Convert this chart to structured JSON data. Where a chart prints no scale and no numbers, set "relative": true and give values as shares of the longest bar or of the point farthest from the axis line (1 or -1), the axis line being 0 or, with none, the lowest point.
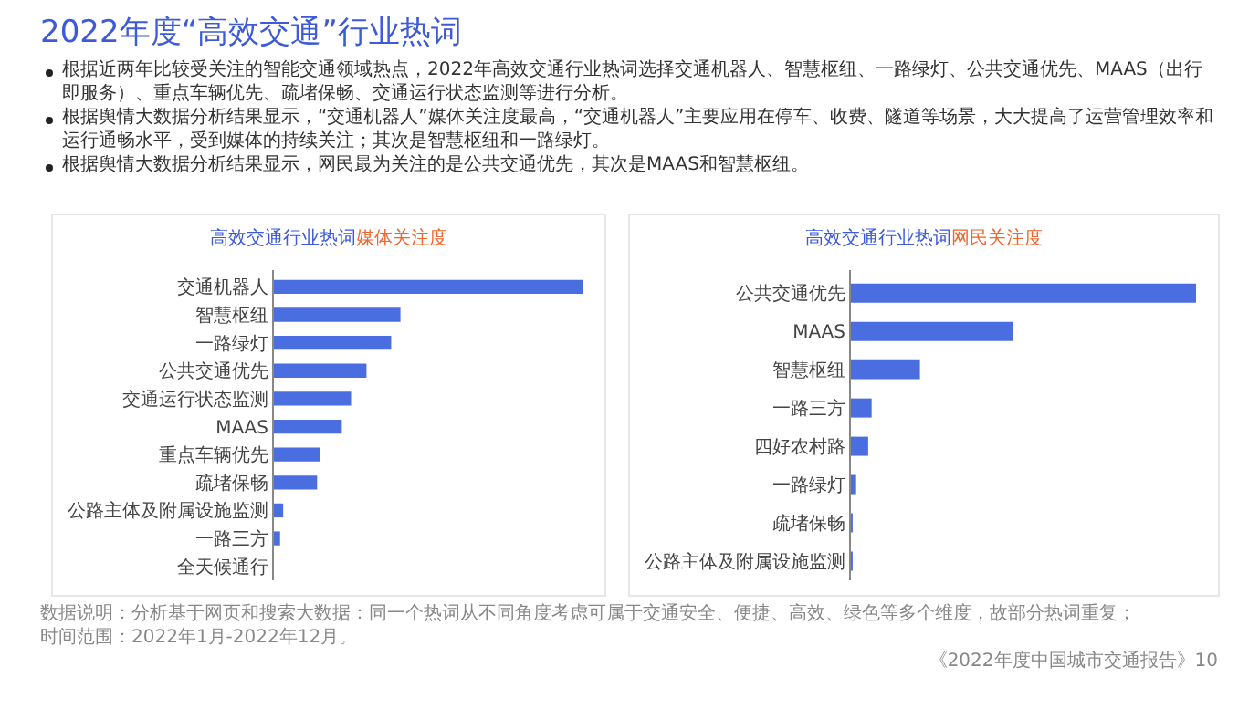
{
  "chart_data": [
    {
      "type": "other",
      "title": "2022年度“高效交通”行业热词",
      "annotations": [
        "根据近两年比较受关注的智能交通领域热点，2022年高效交通行业热词选择交通机器人、智慧枢纽、一路绿灯、公共交通优先、MAAS（出行即服务）、重点车辆优先、疏堵保畅、交通运行状态监测等进行分析。",
        "根据舆情大数据分析结果显示，“交通机器人”媒体关注度最高，“交通机器人”主要应用在停车、收费、隧道等场景，大大提高了运营管理效率和运行通畅水平，受到媒体的持续关注；其次是智慧枢纽和一路绿灯。",
        "根据舆情大数据分析结果显示，网民最为关注的是公共交通优先，其次是MAAS和智慧枢纽。"
      ]
    },
    {
      "type": "bar",
      "orientation": "horizontal",
      "relative": true,
      "title": "高效交通行业热词",
      "subtitle": "媒体关注度",
      "color": "#4a6ee0",
      "categories": [
        "交通机器人",
        "智慧枢纽",
        "一路绿灯",
        "公共交通优先",
        "交通运行状态监测",
        "MAAS",
        "重点车辆优先",
        "疏堵保畅",
        "公路主体及附属设施监测",
        "一路三方",
        "全天候通行"
      ],
      "values": [
        1,
        0.41,
        0.38,
        0.3,
        0.25,
        0.22,
        0.15,
        0.14,
        0.03,
        0.02,
        0
      ]
    },
    {
      "type": "bar",
      "orientation": "horizontal",
      "relative": true,
      "title": "高效交通行业热词",
      "subtitle": "网民关注度",
      "color": "#4a6ee0",
      "categories": [
        "公共交通优先",
        "MAAS",
        "智慧枢纽",
        "一路三方",
        "四好农村路",
        "一路绿灯",
        "疏堵保畅",
        "公路主体及附属设施监测"
      ],
      "values": [
        1,
        0.47,
        0.2,
        0.06,
        0.05,
        0.015,
        0.005,
        0.005
      ]
    },
    {
      "type": "other",
      "annotations": [
        "数据说明：分析基于网页和搜索大数据：同一个热词从不同角度考虑可属于交通安全、便捷、高效、绿色等多个维度，故部分热词重复；",
        "时间范围：2022年1月-2022年12月。",
        "《2022年度中国城市交通报告》10"
      ]
    }
  ]
}
